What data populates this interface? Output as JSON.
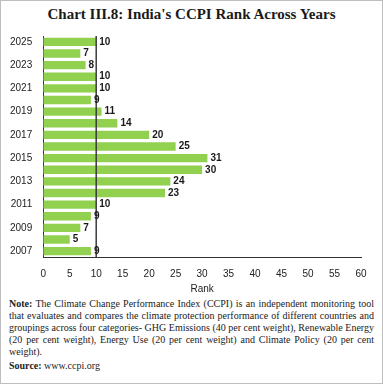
{
  "chart_data": {
    "type": "bar",
    "orientation": "horizontal",
    "title": "Chart III.8: India's CCPI Rank Across Years",
    "x_label": "Rank",
    "categories": [
      "2025",
      null,
      "2023",
      null,
      "2021",
      null,
      "2019",
      null,
      "2017",
      null,
      "2015",
      null,
      "2013",
      null,
      "2011",
      null,
      "2009",
      null,
      "2007"
    ],
    "values": [
      10,
      7,
      8,
      10,
      10,
      9,
      11,
      14,
      20,
      25,
      31,
      30,
      24,
      23,
      10,
      9,
      7,
      5,
      9
    ],
    "color": "#92d050",
    "xlim": [
      0,
      60
    ],
    "xticks": [
      0,
      5,
      10,
      15,
      20,
      25,
      30,
      35,
      40,
      45,
      50,
      55,
      60
    ],
    "reference_line": 10,
    "grid": false,
    "data_labels": true,
    "note": "Note: The Climate Change Performance Index (CCPI) is an independent monitoring tool that evaluates and compares the climate protection performance of different countries and groupings across four categories- GHG Emissions (40 per cent weight), Renewable Energy (20 per cent weight), Energy Use (20 per cent weight) and Climate Policy (20 per cent weight).",
    "source": "Source: www.ccpi.org"
  }
}
